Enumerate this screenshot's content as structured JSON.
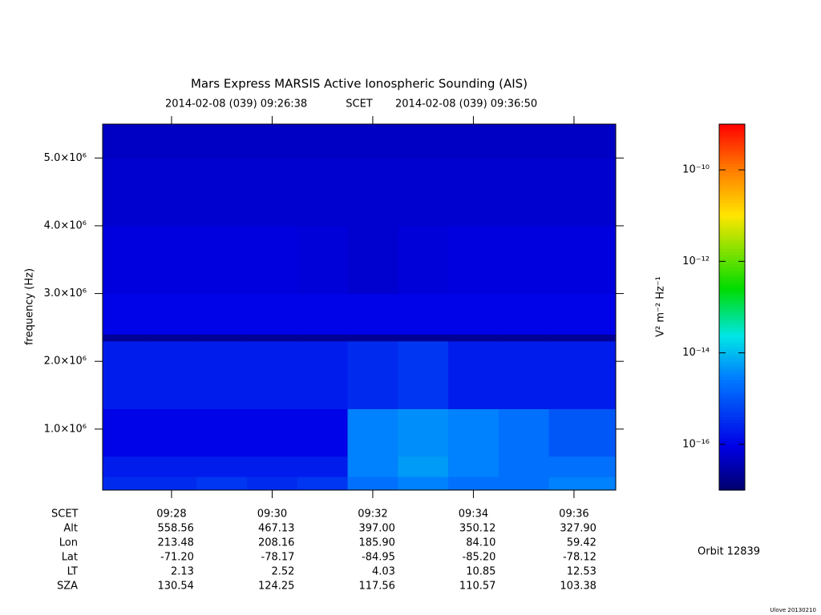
{
  "chart_data": {
    "type": "heatmap",
    "title": "Mars Express MARSIS Active Ionospheric Sounding (AIS)",
    "start_time": "2014-02-08 (039) 09:26:38",
    "time_label": "SCET",
    "end_time": "2014-02-08 (039) 09:36:50",
    "ylabel": "frequency (Hz)",
    "ylim": [
      100000,
      5500000
    ],
    "yticks": [
      {
        "value": 1000000,
        "label": "1.0×10⁶"
      },
      {
        "value": 2000000,
        "label": "2.0×10⁶"
      },
      {
        "value": 3000000,
        "label": "3.0×10⁶"
      },
      {
        "value": 4000000,
        "label": "4.0×10⁶"
      },
      {
        "value": 5000000,
        "label": "5.0×10⁶"
      }
    ],
    "xlim": [
      26.63,
      36.83
    ],
    "xticks": [
      {
        "value": 28,
        "label": "09:28"
      },
      {
        "value": 30,
        "label": "09:30"
      },
      {
        "value": 32,
        "label": "09:32"
      },
      {
        "value": 34,
        "label": "09:34"
      },
      {
        "value": 36,
        "label": "09:36"
      }
    ],
    "xbins": [
      26.63,
      27.5,
      28.5,
      29.5,
      30.5,
      31.5,
      32.5,
      33.5,
      34.5,
      35.5,
      36.83
    ],
    "ybins": [
      100000,
      300000,
      600000,
      1300000,
      2300000,
      2400000,
      3000000,
      4000000,
      5000000,
      5500000
    ],
    "z": [
      [
        3e-16,
        3e-16,
        4e-16,
        3e-16,
        4e-16,
        2e-15,
        3e-15,
        2e-15,
        2e-15,
        3e-15
      ],
      [
        2e-16,
        2e-16,
        2e-16,
        2e-16,
        2e-16,
        3e-15,
        5e-15,
        3e-15,
        2e-15,
        2e-15
      ],
      [
        1e-16,
        1e-16,
        1e-16,
        1e-16,
        1e-16,
        3e-15,
        4e-15,
        3e-15,
        2e-15,
        1e-15
      ],
      [
        2e-16,
        2e-16,
        2e-16,
        2e-16,
        2e-16,
        3e-16,
        4e-16,
        2e-16,
        2e-16,
        2e-16
      ],
      [
        2e-17,
        2e-17,
        2e-17,
        2e-17,
        2e-17,
        2e-17,
        2e-17,
        2e-17,
        2e-17,
        2e-17
      ],
      [
        1e-16,
        1e-16,
        1e-16,
        1e-16,
        1e-16,
        1e-16,
        1e-16,
        1e-16,
        1e-16,
        1e-16
      ],
      [
        8e-17,
        8e-17,
        8e-17,
        8e-17,
        7e-17,
        6e-17,
        7e-17,
        8e-17,
        8e-17,
        8e-17
      ],
      [
        6e-17,
        6e-17,
        6e-17,
        6e-17,
        6e-17,
        6e-17,
        6e-17,
        6e-17,
        6e-17,
        6e-17
      ],
      [
        5e-17,
        5e-17,
        5e-17,
        5e-17,
        5e-17,
        5e-17,
        5e-17,
        5e-17,
        5e-17,
        5e-17
      ]
    ],
    "zlabel": "V² m⁻² Hz⁻¹",
    "zscale": "log",
    "zlim": [
      1e-17,
      1e-09
    ],
    "zticks": [
      {
        "value": 1e-10,
        "label": "10⁻¹⁰"
      },
      {
        "value": 1e-12,
        "label": "10⁻¹²"
      },
      {
        "value": 1e-14,
        "label": "10⁻¹⁴"
      },
      {
        "value": 1e-16,
        "label": "10⁻¹⁶"
      }
    ],
    "ephemeris": [
      {
        "label": "Alt",
        "values": [
          "558.56",
          "467.13",
          "397.00",
          "350.12",
          "327.90"
        ]
      },
      {
        "label": "Lon",
        "values": [
          "213.48",
          "208.16",
          "185.90",
          "84.10",
          "59.42"
        ]
      },
      {
        "label": "Lat",
        "values": [
          "-71.20",
          "-78.17",
          "-84.95",
          "-85.20",
          "-78.12"
        ]
      },
      {
        "label": "LT",
        "values": [
          "2.13",
          "2.52",
          "4.03",
          "10.85",
          "12.53"
        ]
      },
      {
        "label": "SZA",
        "values": [
          "130.54",
          "124.25",
          "117.56",
          "110.57",
          "103.38"
        ]
      }
    ],
    "orbit": "Orbit 12839",
    "footer": "Ulove 20130210"
  }
}
